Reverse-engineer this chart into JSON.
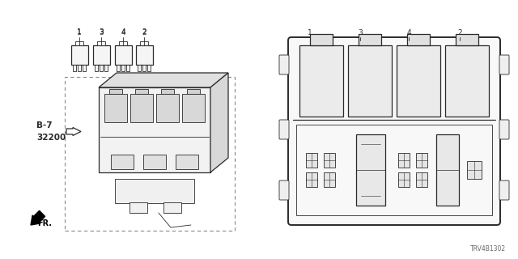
{
  "bg_color": "#ffffff",
  "line_color": "#2a2a2a",
  "diagram_id": "TRV4B1302",
  "label_b7": "B-7",
  "label_32200": "32200",
  "label_fr": "FR.",
  "relay_labels": [
    "1",
    "3",
    "4",
    "2"
  ],
  "detail_relay_labels": [
    "1",
    "3",
    "4",
    "2"
  ],
  "fig_w": 6.4,
  "fig_h": 3.2,
  "dpi": 100
}
